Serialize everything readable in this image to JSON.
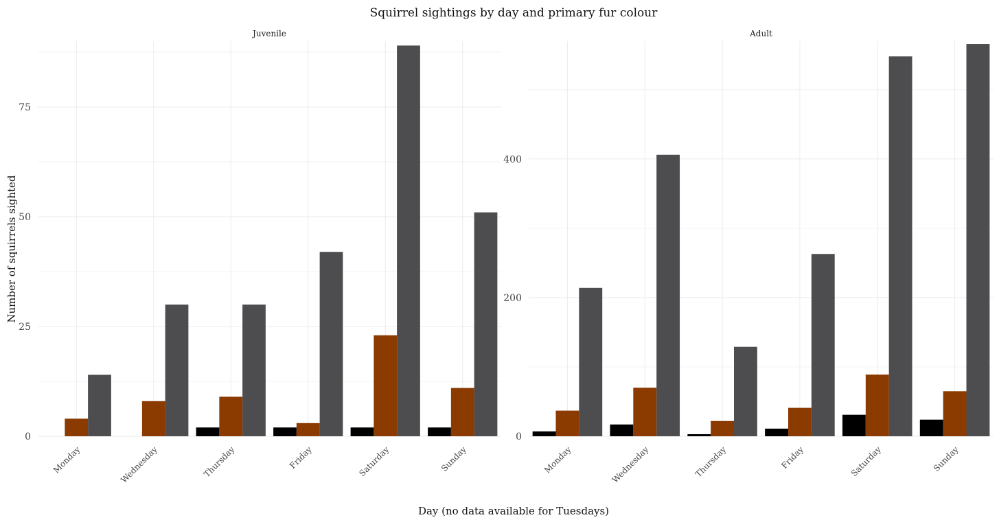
{
  "chart_data": {
    "type": "bar",
    "title": "Squirrel sightings by day and primary fur colour",
    "xlabel": "Day (no data available for Tuesdays)",
    "ylabel": "Number of squirrels sighted",
    "categories": [
      "Monday",
      "Wednesday",
      "Thursday",
      "Friday",
      "Saturday",
      "Sunday"
    ],
    "colors": {
      "black": "#000000",
      "cinnamon": "#8B3A00",
      "gray": "#4D4D4F"
    },
    "grid": true,
    "legend": "none",
    "facets": [
      {
        "label": "Juvenile",
        "ylim": [
          0,
          90
        ],
        "yticks": [
          0,
          25,
          50,
          75
        ],
        "series": [
          {
            "color_key": "black",
            "values": [
              0,
              0,
              2,
              2,
              2,
              2
            ]
          },
          {
            "color_key": "cinnamon",
            "values": [
              4,
              8,
              9,
              3,
              23,
              11
            ]
          },
          {
            "color_key": "gray",
            "values": [
              14,
              30,
              30,
              42,
              89,
              51
            ]
          }
        ]
      },
      {
        "label": "Adult",
        "ylim": [
          0,
          570
        ],
        "yticks": [
          0,
          200,
          400
        ],
        "series": [
          {
            "color_key": "black",
            "values": [
              7,
              17,
              3,
              11,
              31,
              24
            ]
          },
          {
            "color_key": "cinnamon",
            "values": [
              37,
              70,
              22,
              41,
              89,
              65
            ]
          },
          {
            "color_key": "gray",
            "values": [
              214,
              406,
              129,
              263,
              548,
              566
            ]
          }
        ]
      }
    ]
  }
}
